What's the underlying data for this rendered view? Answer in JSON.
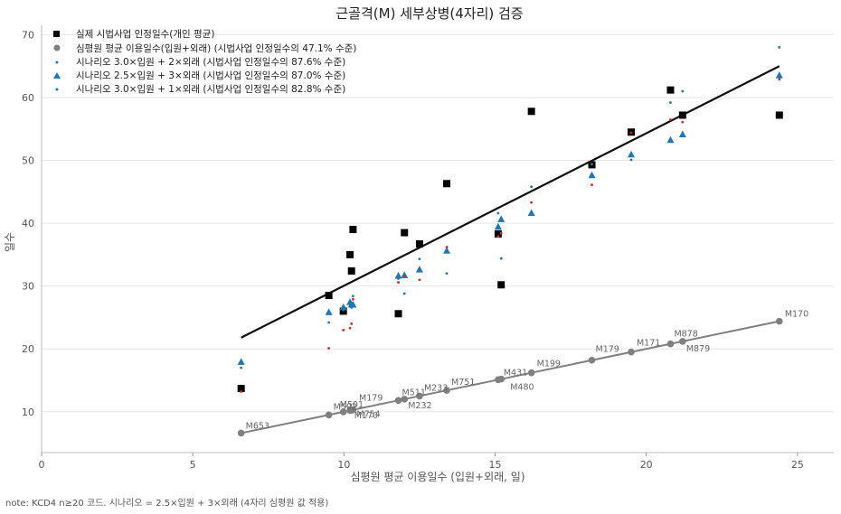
{
  "chart_data": {
    "type": "scatter",
    "title": "근골격(M) 세부상병(4자리) 검증",
    "xlabel": "심평원 평균 이용일수 (입원+외래, 일)",
    "ylabel": "일수",
    "xlim": [
      0,
      26.2
    ],
    "ylim": [
      3.5,
      71.5
    ],
    "xticks": [
      0,
      5,
      10,
      15,
      20,
      25
    ],
    "yticks": [
      10,
      20,
      30,
      40,
      50,
      60,
      70
    ],
    "grid": "horizontal",
    "legend_position": "top-left",
    "colors": {
      "actual": "#000000",
      "hira": "#808080",
      "s1": "#1f77b4",
      "s2": "#1f77b4",
      "s3": "#1f77b4",
      "s3_alt": "#d62728",
      "fit": "#111111"
    },
    "series": [
      {
        "name": "실제 시법사업 인정일수(개인 평균)",
        "marker": "square",
        "x": [
          6.6,
          9.5,
          9.98,
          10.2,
          10.25,
          10.3,
          11.8,
          12.0,
          12.5,
          13.4,
          15.1,
          15.2,
          16.2,
          18.2,
          19.5,
          20.8,
          21.2,
          24.4
        ],
        "y": [
          13.7,
          28.5,
          26.0,
          35.0,
          32.4,
          39.0,
          25.6,
          38.5,
          36.7,
          46.3,
          38.3,
          30.2,
          57.8,
          49.3,
          54.5,
          61.2,
          57.2,
          57.2
        ]
      },
      {
        "name": "심평원 평균 이용일수(입원+외래) (시법사업 인정일수의 47.1% 수준)",
        "marker": "circle",
        "x": [
          6.6,
          9.5,
          9.98,
          10.2,
          10.25,
          10.3,
          11.8,
          12.0,
          12.5,
          13.4,
          15.1,
          15.2,
          16.2,
          18.2,
          19.5,
          20.8,
          21.2,
          24.4
        ],
        "y": [
          6.6,
          9.5,
          9.98,
          10.2,
          10.25,
          10.3,
          11.8,
          12.0,
          12.5,
          13.4,
          15.1,
          15.2,
          16.2,
          18.2,
          19.5,
          20.8,
          21.2,
          24.4
        ],
        "labels": [
          "M653",
          "M502",
          "M501",
          "M179",
          "M170b",
          "M754",
          "M511",
          "M232",
          "M233",
          "M751",
          "M431",
          "M480",
          "M199",
          "M179",
          "M171",
          "M878",
          "M879",
          "M170"
        ]
      },
      {
        "name": "시나리오 3.0×입원 + 2×외래 (시법사업 인정일수의 87.6% 수준)",
        "marker": "dot",
        "x": [
          6.6,
          9.5,
          9.98,
          10.2,
          10.25,
          10.3,
          11.8,
          12.0,
          12.5,
          13.4,
          15.1,
          15.2,
          16.2,
          18.2,
          19.5,
          20.8,
          21.2,
          24.4
        ],
        "y": [
          17.0,
          24.2,
          26.2,
          27.2,
          26.6,
          28.4,
          31.2,
          28.8,
          34.3,
          32.0,
          41.6,
          34.4,
          45.8,
          49.4,
          50.1,
          59.2,
          61.0,
          68.0
        ]
      },
      {
        "name": "시나리오 2.5×입원 + 3×외래 (시법사업 인정일수의 87.0% 수준)",
        "marker": "triangle",
        "x": [
          6.6,
          9.5,
          9.98,
          10.2,
          10.25,
          10.3,
          11.8,
          12.0,
          12.5,
          13.4,
          15.1,
          15.2,
          16.2,
          18.2,
          19.5,
          20.8,
          21.2,
          24.4
        ],
        "y": [
          17.9,
          25.8,
          26.6,
          27.4,
          27.0,
          27.0,
          31.6,
          31.7,
          32.6,
          35.6,
          39.4,
          40.6,
          41.6,
          47.6,
          50.9,
          53.2,
          54.1,
          63.5
        ]
      },
      {
        "name": "시나리오 3.0×입원 + 1×외래 (시법사업 인정일수의 82.8% 수준)",
        "marker": "dot",
        "x": [
          6.6,
          9.5,
          9.98,
          10.2,
          10.25,
          10.3,
          11.8,
          12.0,
          12.5,
          13.4,
          15.1,
          15.2,
          16.2,
          18.2,
          19.5,
          20.8,
          21.2,
          24.4
        ],
        "y": [
          13.2,
          20.1,
          23.0,
          23.3,
          24.0,
          27.9,
          30.6,
          31.5,
          31.0,
          36.2,
          37.9,
          38.4,
          43.3,
          46.1,
          54.4,
          56.5,
          56.1,
          62.9
        ]
      }
    ],
    "fit_lines": [
      {
        "x": [
          6.6,
          24.4
        ],
        "y": [
          21.8,
          65.0
        ],
        "color": "#111111"
      },
      {
        "x": [
          6.6,
          24.4
        ],
        "y": [
          6.6,
          24.4
        ],
        "color": "#808080"
      }
    ],
    "note": "note: KCD4 n≥20 코드. 시나리오 = 2.5×입원 + 3×외래 (4자리 심평원 값 적용)"
  }
}
